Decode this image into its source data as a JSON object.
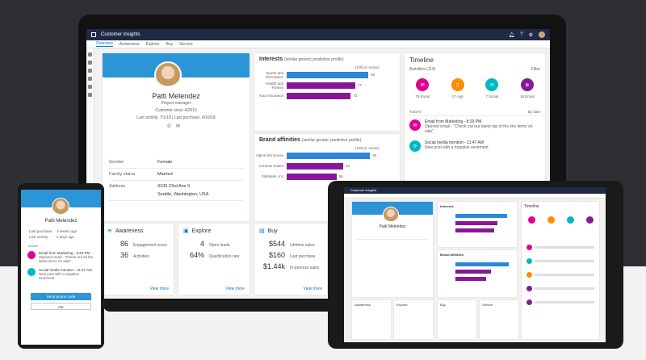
{
  "app": {
    "title": "Customer Insights"
  },
  "nav": {
    "tabs": [
      "Overview",
      "Awareness",
      "Explore",
      "Buy",
      "Service"
    ],
    "active": "Overview"
  },
  "profile": {
    "name": "Patti Melendez",
    "job": "Project manager",
    "since": "Customer since 4/2013",
    "activity": "Last activity, 7/1/18   |   Last purchase, 4/16/18",
    "fields": [
      {
        "k": "Gender",
        "v": "Female"
      },
      {
        "k": "Family status",
        "v": "Married"
      },
      {
        "k": "Address",
        "v": "3100 23rd Ave S"
      },
      {
        "k": "",
        "v": "Seattle, Washington, USA"
      }
    ]
  },
  "interests": {
    "title": "Interests",
    "subtitle": "(similar generic predictive profile)",
    "scale_label": "(100 pt. score)",
    "rows": [
      {
        "label": "Sports and Recreation",
        "value": 92,
        "color": "#2b88d8"
      },
      {
        "label": "Health and Fitness",
        "value": 77,
        "color": "#881798"
      },
      {
        "label": "Auto Insurance",
        "value": 72,
        "color": "#881798"
      }
    ]
  },
  "brands": {
    "title": "Brand affinities",
    "subtitle": "(similar generic predictive profile)",
    "scale_label": "(100 pt. score)",
    "rows": [
      {
        "label": "Alpine Ski House",
        "value": 94,
        "color": "#2b88d8"
      },
      {
        "label": "Contoso Suites",
        "value": 64,
        "color": "#881798"
      },
      {
        "label": "Fabrikam, Inc",
        "value": 56,
        "color": "#881798"
      }
    ]
  },
  "timeline": {
    "title": "Timeline",
    "filter": "Filter",
    "activities": "Activities",
    "activities_count": "(119)",
    "sort": "By date",
    "today": "TODAY",
    "categories": [
      {
        "label": "79 Email",
        "color": "#e3008c",
        "icon": "✉"
      },
      {
        "label": "17 App",
        "color": "#ff8c00",
        "icon": "▯"
      },
      {
        "label": "7 Social",
        "color": "#00b7c3",
        "icon": "⟳"
      },
      {
        "label": "16 Email",
        "color": "#881798",
        "icon": "⊕"
      }
    ],
    "items": [
      {
        "title": "Email from Marketing - 8:20 PM",
        "desc": "Opened email - \"Check out our latest top of the line items on sale\"",
        "color": "#e3008c",
        "icon": "✉"
      },
      {
        "title": "Social media mention - 11:47 AM",
        "desc": "New post with a negative sentiment",
        "color": "#00b7c3",
        "icon": "⟳"
      }
    ]
  },
  "tiles": {
    "awareness": {
      "title": "Awareness",
      "rows": [
        {
          "v": "86",
          "l": "Engagement score"
        },
        {
          "v": "36",
          "l": "Activities"
        }
      ],
      "more": "View more"
    },
    "explore": {
      "title": "Explore",
      "rows": [
        {
          "v": "4",
          "l": "Open leads"
        },
        {
          "v": "64%",
          "l": "Qualification rate"
        }
      ],
      "more": "View more"
    },
    "buy": {
      "title": "Buy",
      "rows": [
        {
          "v": "$544",
          "l": "Lifetime sales"
        },
        {
          "v": "$160",
          "l": "Last purchase"
        },
        {
          "v": "$1.44k",
          "l": "In-process sales"
        }
      ],
      "more": "View more"
    }
  },
  "phone": {
    "name": "Patti Melendez",
    "kv": [
      {
        "k": "Last purchase",
        "v": "3 weeks ago"
      },
      {
        "k": "Last activity",
        "v": "2 days ago"
      }
    ],
    "today": "TODAY",
    "items": [
      {
        "title": "Email from Marketing - 8:20 PM",
        "desc": "Opened email - \"Check out all the latest items on sale\"",
        "color": "#e3008c"
      },
      {
        "title": "Social media mention - 11:47 AM",
        "desc": "New post with a negative sentiment",
        "color": "#00b7c3"
      }
    ],
    "primary_btn": "Send promo code",
    "secondary_btn": "OK"
  },
  "tablet": {
    "title": "Customer Insights",
    "name": "Patti Melendez",
    "interests": "Interests",
    "brands": "Brand affinities",
    "timeline": "Timeline",
    "tiles": [
      "Awareness",
      "Explore",
      "Buy",
      "Service"
    ]
  }
}
